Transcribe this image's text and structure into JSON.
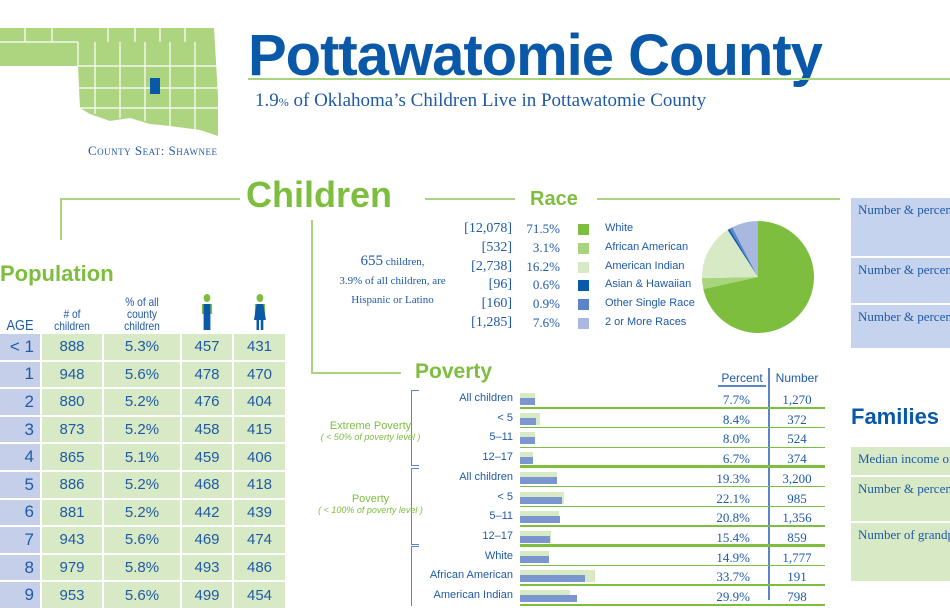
{
  "header": {
    "title": "Pottawatomie County",
    "subtitle_pct": "1.9",
    "subtitle_pct_sign": "%",
    "subtitle_rest": " of Oklahoma’s Children Live in Pottawatomie County",
    "county_seat": "County Seat: Shawnee"
  },
  "colors": {
    "brand_blue": "#0a58a8",
    "brand_green": "#7dbe3f",
    "highlight_county": "#0a58a8",
    "map_fill": "#add47f"
  },
  "children": {
    "heading": "Children",
    "hispanic_line1_num": "655",
    "hispanic_line1_rest": " children,",
    "hispanic_line2": "3.9% of all children, are",
    "hispanic_line3": "Hispanic or Latino"
  },
  "race": {
    "heading": "Race",
    "rows": [
      {
        "count": "[12,078]",
        "pct": "71.5%",
        "label": "White",
        "value": 71.5,
        "color": "#7dbe3f"
      },
      {
        "count": "[532]",
        "pct": "3.1%",
        "label": "African American",
        "value": 3.1,
        "color": "#a8d47e"
      },
      {
        "count": "[2,738]",
        "pct": "16.2%",
        "label": "American Indian",
        "value": 16.2,
        "color": "#d7eac5"
      },
      {
        "count": "[96]",
        "pct": "0.6%",
        "label": "Asian & Hawaiian",
        "value": 0.6,
        "color": "#0a58a8"
      },
      {
        "count": "[160]",
        "pct": "0.9%",
        "label": "Other Single Race",
        "value": 0.9,
        "color": "#5b85c8"
      },
      {
        "count": "[1,285]",
        "pct": "7.6%",
        "label": "2 or More Races",
        "value": 7.6,
        "color": "#a9b8e0"
      }
    ]
  },
  "population": {
    "heading": "Population",
    "columns": [
      "AGE",
      "# of children",
      "% of all county children",
      "boy-icon",
      "girl-icon"
    ],
    "rows": [
      [
        "< 1",
        "888",
        "5.3%",
        "457",
        "431"
      ],
      [
        "1",
        "948",
        "5.6%",
        "478",
        "470"
      ],
      [
        "2",
        "880",
        "5.2%",
        "476",
        "404"
      ],
      [
        "3",
        "873",
        "5.2%",
        "458",
        "415"
      ],
      [
        "4",
        "865",
        "5.1%",
        "459",
        "406"
      ],
      [
        "5",
        "886",
        "5.2%",
        "468",
        "418"
      ],
      [
        "6",
        "881",
        "5.2%",
        "442",
        "439"
      ],
      [
        "7",
        "943",
        "5.6%",
        "469",
        "474"
      ],
      [
        "8",
        "979",
        "5.8%",
        "493",
        "486"
      ],
      [
        "9",
        "953",
        "5.6%",
        "499",
        "454"
      ]
    ]
  },
  "poverty": {
    "heading": "Poverty",
    "col_percent": "Percent",
    "col_number": "Number",
    "groups": [
      {
        "label": "Extreme Poverty",
        "sub": "( < 50% of poverty level )"
      },
      {
        "label": "Poverty",
        "sub": "( < 100% of poverty level )"
      }
    ],
    "rows": [
      {
        "label": "All children",
        "pct": "7.7%",
        "num": "1,270",
        "value": 7.7,
        "compare": 8.0
      },
      {
        "label": "< 5",
        "pct": "8.4%",
        "num": "372",
        "value": 8.4,
        "compare": 10.5
      },
      {
        "label": "5–11",
        "pct": "8.0%",
        "num": "524",
        "value": 8.0,
        "compare": 7.8
      },
      {
        "label": "12–17",
        "pct": "6.7%",
        "num": "374",
        "value": 6.7,
        "compare": 6.9
      },
      {
        "label": "All children",
        "pct": "19.3%",
        "num": "3,200",
        "value": 19.3,
        "compare": 19.5
      },
      {
        "label": "< 5",
        "pct": "22.1%",
        "num": "985",
        "value": 22.1,
        "compare": 22.7
      },
      {
        "label": "5–11",
        "pct": "20.8%",
        "num": "1,356",
        "value": 20.8,
        "compare": 20.2
      },
      {
        "label": "12–17",
        "pct": "15.4%",
        "num": "859",
        "value": 15.4,
        "compare": 16.2
      },
      {
        "label": "White",
        "pct": "14.9%",
        "num": "1,777",
        "value": 14.9,
        "compare": 15.0
      },
      {
        "label": "African American",
        "pct": "33.7%",
        "num": "191",
        "value": 33.7,
        "compare": 39.0
      },
      {
        "label": "American Indian",
        "pct": "29.9%",
        "num": "798",
        "value": 29.9,
        "compare": 26.0
      }
    ]
  },
  "education_boxes": [
    "Number & percent enrolled in nursery or kindergarten",
    "Number & percent with a disability",
    "Number & percent not attending school"
  ],
  "families": {
    "heading": "Families",
    "boxes": [
      "Median income of",
      "Number & percent children headed by",
      "Number of grandparents their own grandchildren of householders a"
    ]
  }
}
